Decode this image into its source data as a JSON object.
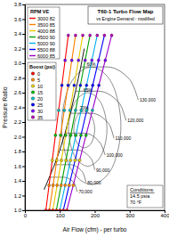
{
  "chart_data": {
    "type": "line",
    "title": "T60-1 Turbo Flow Map",
    "subtitle": "vs Engine Demand - modified",
    "x_label": "Air Flow (cfm) - per turbo",
    "y_label": "Pressure Ratio",
    "xlim": [
      0,
      400
    ],
    "xticks": [
      0,
      100,
      200,
      300,
      400
    ],
    "ylim": [
      1.0,
      3.8
    ],
    "yticks": [
      {
        "value": 1.0,
        "label": "1.0"
      },
      {
        "value": 1.2,
        "label": "1.2"
      },
      {
        "value": 1.4,
        "label": "1.4"
      },
      {
        "value": 1.6,
        "label": "1.6"
      },
      {
        "value": 1.8,
        "label": "1.8"
      },
      {
        "value": 2.0,
        "label": "2.0"
      },
      {
        "value": 2.2,
        "label": "2.2"
      },
      {
        "value": 2.4,
        "label": "2.4"
      },
      {
        "value": 2.6,
        "label": "2.6"
      },
      {
        "value": 2.8,
        "label": "2.8"
      },
      {
        "value": 3.0,
        "label": "3.0"
      },
      {
        "value": 3.2,
        "label": "3.2"
      },
      {
        "value": 3.4,
        "label": "3.4"
      },
      {
        "value": 3.6,
        "label": "3.6"
      },
      {
        "value": 3.8,
        "label": "3.8"
      }
    ],
    "grid": false,
    "legend": "upper left",
    "rpm_legend_title": "RPM VE",
    "marker": "circle",
    "series": [
      {
        "name": "3000 82",
        "color": "#ff0000",
        "x": [
          60,
          69.2,
          78.4,
          87.5,
          96.7,
          105.9,
          115.1,
          124.3
        ],
        "values": [
          1.0,
          1.34,
          1.68,
          2.02,
          2.36,
          2.7,
          3.04,
          3.38
        ]
      },
      {
        "name": "3500 85",
        "color": "#ff8000",
        "x": [
          70,
          80.7,
          91.4,
          102.1,
          112.8,
          123.6,
          134.3,
          145.0
        ],
        "values": [
          1.0,
          1.34,
          1.68,
          2.02,
          2.36,
          2.7,
          3.04,
          3.38
        ]
      },
      {
        "name": "4000 88",
        "color": "#e6c800",
        "x": [
          80,
          92.2,
          104.5,
          116.7,
          129.0,
          141.2,
          153.4,
          165.7
        ],
        "values": [
          1.0,
          1.34,
          1.68,
          2.02,
          2.36,
          2.7,
          3.04,
          3.38
        ]
      },
      {
        "name": "4500 90",
        "color": "#00a000",
        "x": [
          90,
          103.8,
          117.5,
          131.3,
          145.1,
          158.9,
          172.6,
          186.4
        ],
        "values": [
          1.0,
          1.34,
          1.68,
          2.02,
          2.36,
          2.7,
          3.04,
          3.38
        ]
      },
      {
        "name": "5000 90",
        "color": "#00b0f0",
        "x": [
          100,
          115.3,
          130.6,
          145.9,
          161.2,
          176.5,
          191.8,
          207.1
        ],
        "values": [
          1.0,
          1.34,
          1.68,
          2.02,
          2.36,
          2.7,
          3.04,
          3.38
        ]
      },
      {
        "name": "5500 88",
        "color": "#0000ff",
        "x": [
          110,
          126.8,
          143.7,
          160.5,
          177.3,
          194.2,
          211.0,
          227.8
        ],
        "values": [
          1.0,
          1.34,
          1.68,
          2.02,
          2.36,
          2.7,
          3.04,
          3.38
        ]
      },
      {
        "name": "6000 85",
        "color": "#9900cc",
        "x": [
          120,
          138.4,
          156.7,
          175.1,
          193.4,
          211.8,
          230.2,
          248.5
        ],
        "values": [
          1.0,
          1.34,
          1.68,
          2.02,
          2.36,
          2.7,
          3.04,
          3.38
        ]
      }
    ],
    "boost": {
      "title": "Boost (psi)",
      "values": [
        0,
        5,
        10,
        15,
        20,
        25,
        30,
        35
      ],
      "colors": [
        "#ff0000",
        "#ff8c00",
        "#e6d200",
        "#00c000",
        "#00c0c0",
        "#0000ff",
        "#8000ff",
        "#c000c0"
      ]
    },
    "compressor_map": {
      "surge_line": {
        "x": [
          55,
          70,
          85,
          100,
          115,
          130,
          145,
          160,
          170
        ],
        "values": [
          1.28,
          1.45,
          1.62,
          1.82,
          2.05,
          2.32,
          2.62,
          2.95,
          3.2
        ]
      },
      "speed_lines": [
        {
          "name": "70,000",
          "x": [
            70,
            110,
            140,
            150
          ],
          "values": [
            1.45,
            1.45,
            1.38,
            1.25
          ]
        },
        {
          "name": "80,000",
          "x": [
            85,
            130,
            165,
            175
          ],
          "values": [
            1.62,
            1.62,
            1.52,
            1.38
          ]
        },
        {
          "name": "90,000",
          "x": [
            100,
            150,
            190,
            200
          ],
          "values": [
            1.82,
            1.82,
            1.7,
            1.55
          ]
        },
        {
          "name": "100,000",
          "x": [
            115,
            170,
            215,
            230
          ],
          "values": [
            2.05,
            2.05,
            1.92,
            1.75
          ]
        },
        {
          "name": "110,000",
          "x": [
            130,
            190,
            240,
            255
          ],
          "values": [
            2.32,
            2.32,
            2.18,
            1.98
          ]
        },
        {
          "name": "120,000",
          "x": [
            145,
            210,
            270,
            290
          ],
          "values": [
            2.62,
            2.62,
            2.46,
            2.22
          ]
        },
        {
          "name": "130,000",
          "x": [
            160,
            235,
            300,
            325
          ],
          "values": [
            2.95,
            2.95,
            2.78,
            2.5
          ]
        }
      ],
      "efficiency": [
        {
          "name": "60%",
          "x": [
            275,
            250,
            190,
            130,
            105,
            130,
            190,
            250
          ],
          "values": [
            2.15,
            2.72,
            2.95,
            2.72,
            2.15,
            1.58,
            1.35,
            1.58
          ]
        },
        {
          "name": "65%",
          "x": [
            235,
            219,
            180,
            141,
            125,
            141,
            180,
            219
          ],
          "values": [
            2.1,
            2.45,
            2.6,
            2.45,
            2.1,
            1.75,
            1.6,
            1.75
          ]
        },
        {
          "name": "70%",
          "x": [
            200,
            191,
            170,
            149,
            140,
            149,
            170,
            191
          ],
          "values": [
            2.1,
            2.28,
            2.35,
            2.28,
            2.1,
            1.92,
            1.85,
            1.92
          ]
        }
      ]
    },
    "annotations": [
      "Conditions:",
      "14.5 psia",
      "70 °F"
    ]
  }
}
